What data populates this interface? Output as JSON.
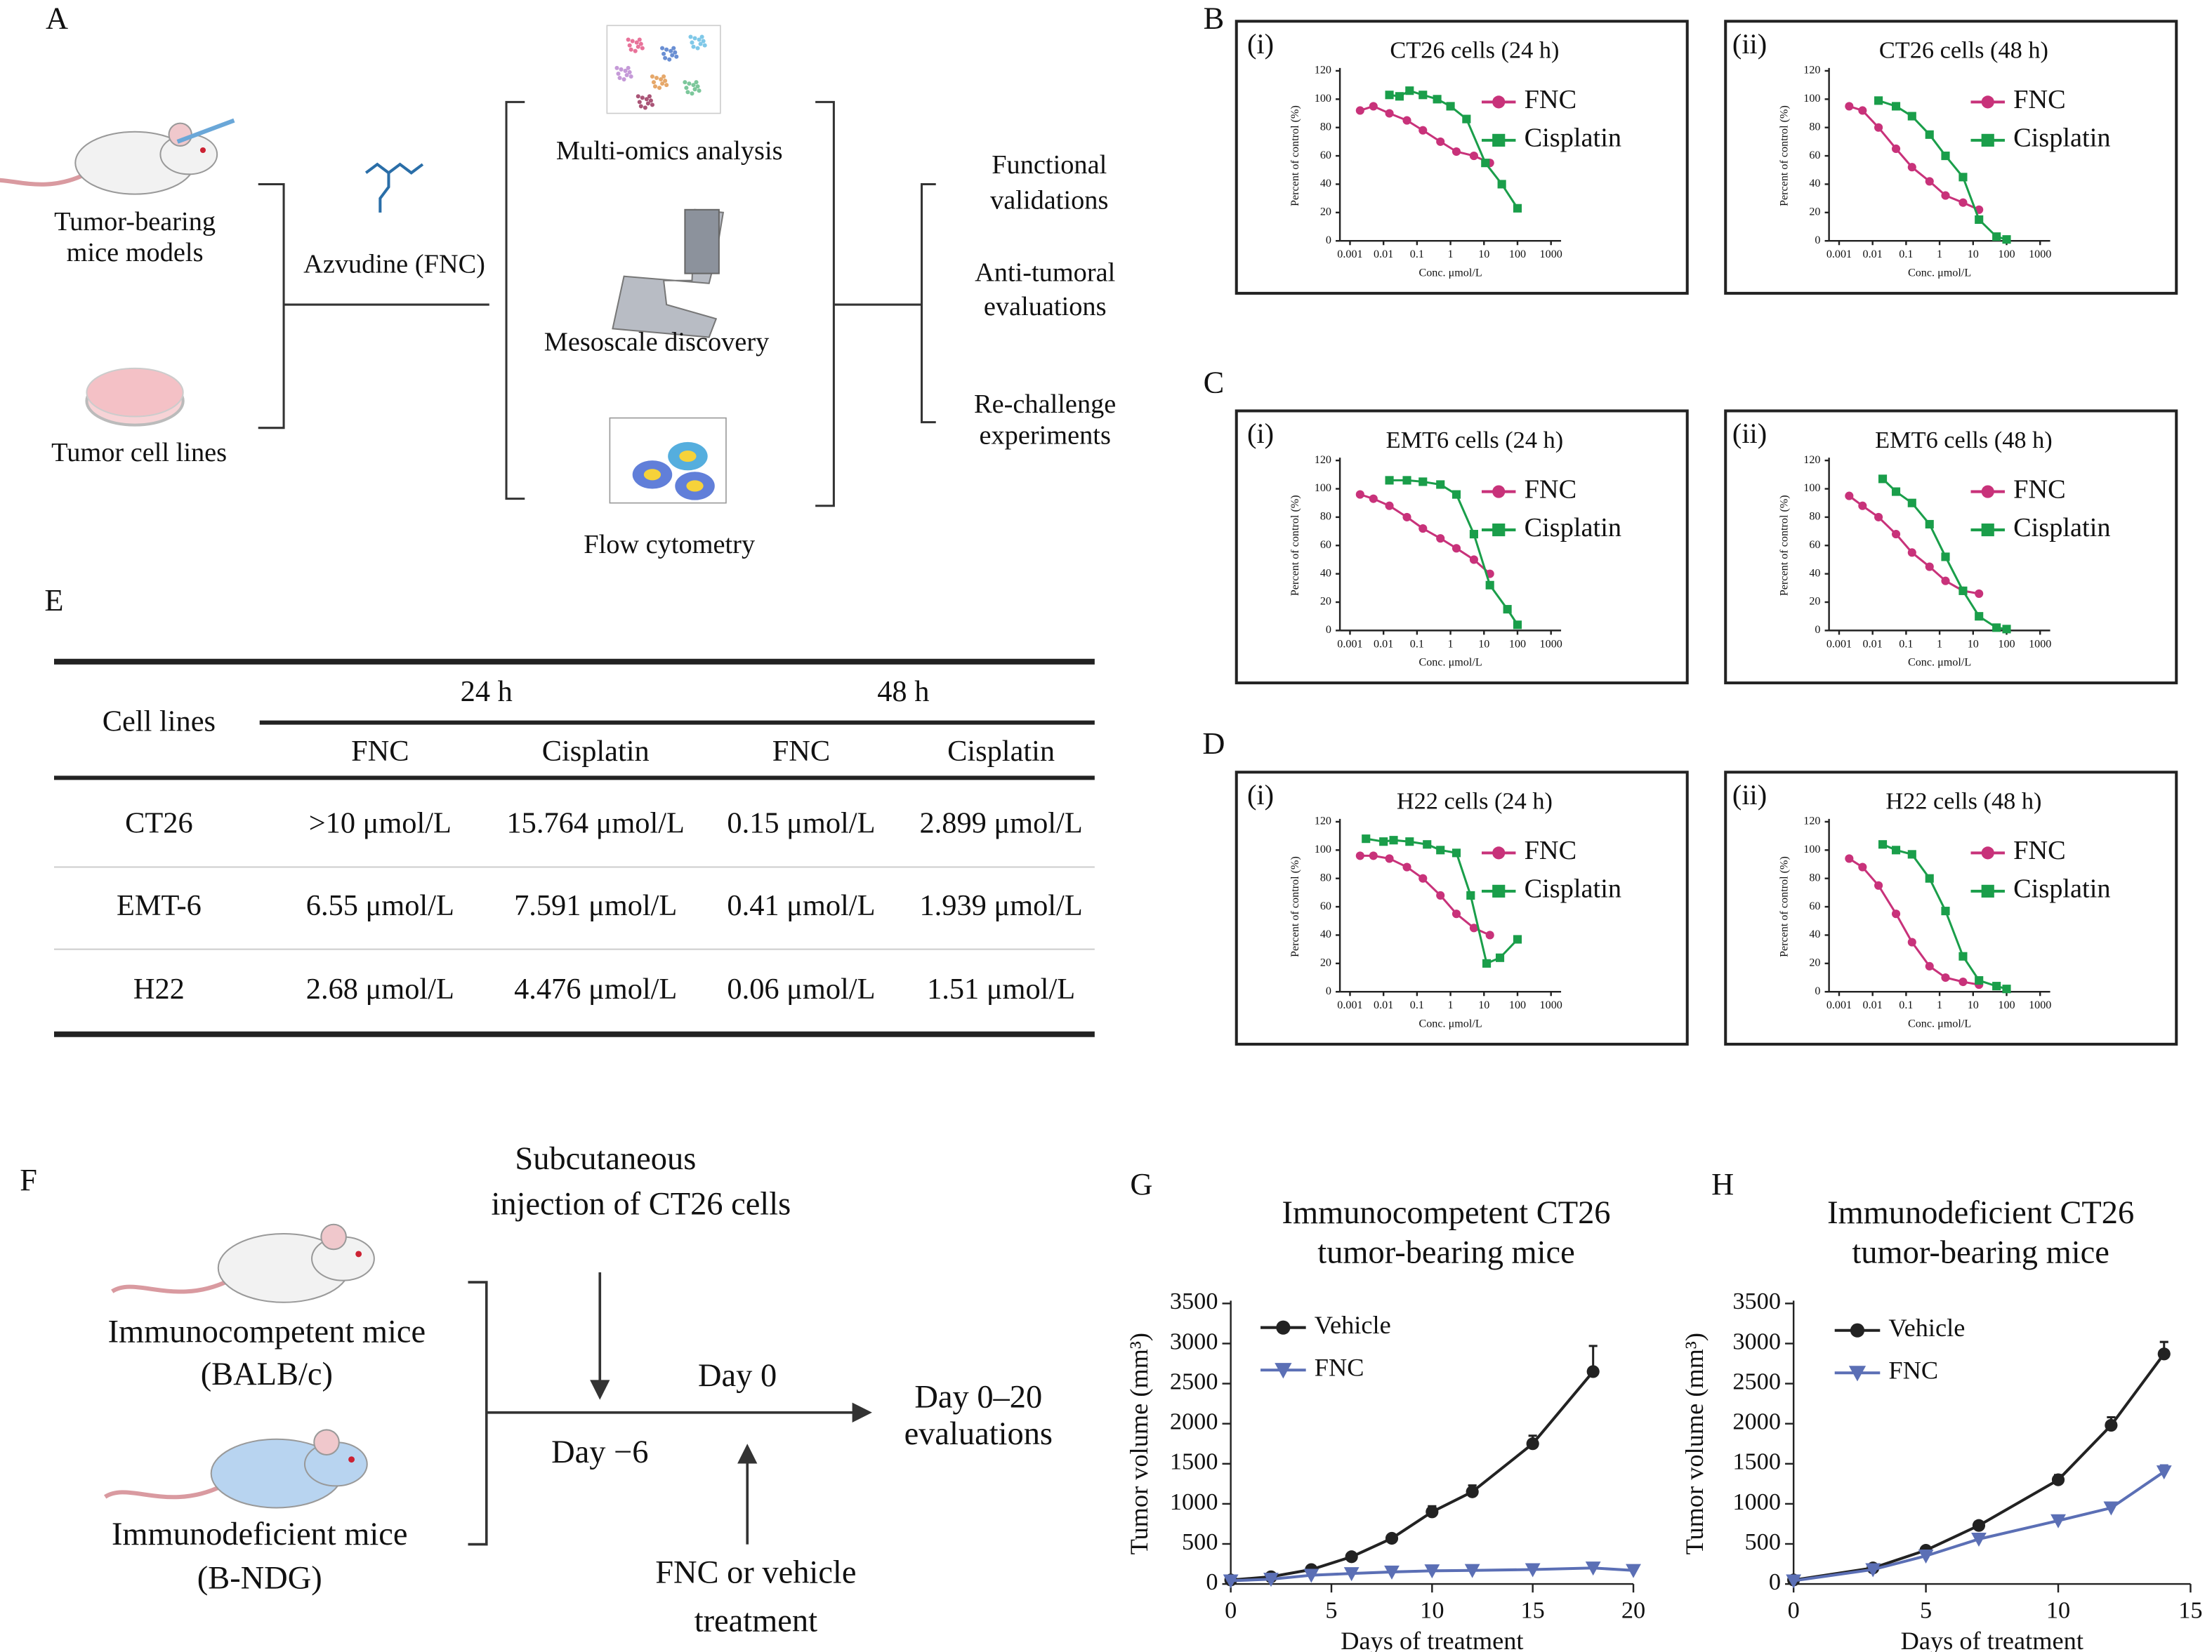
{
  "panel_labels": [
    "A",
    "B",
    "C",
    "D",
    "E",
    "F",
    "G",
    "H"
  ],
  "overview": {
    "models": [
      "Tumor-bearing",
      "mice models"
    ],
    "cell_lines": "Tumor cell lines",
    "drug": "Azvudine (FNC)",
    "methods": [
      "Multi-omics analysis",
      "Mesoscale discovery",
      "Flow cytometry"
    ],
    "outcomes": [
      [
        "Functional",
        "validations"
      ],
      [
        "Anti-tumoral",
        "evaluations"
      ],
      [
        "Re-challenge",
        "experiments"
      ]
    ]
  },
  "table": {
    "row_header": "Cell lines",
    "groups": [
      "24 h",
      "48 h"
    ],
    "columns": [
      "FNC",
      "Cisplatin",
      "FNC",
      "Cisplatin"
    ],
    "rows": [
      [
        "CT26",
        ">10 μmol/L",
        "15.764 μmol/L",
        "0.15 μmol/L",
        "2.899 μmol/L"
      ],
      [
        "EMT-6",
        "6.55 μmol/L",
        "7.591 μmol/L",
        "0.41 μmol/L",
        "1.939 μmol/L"
      ],
      [
        "H22",
        "2.68 μmol/L",
        "4.476 μmol/L",
        "0.06 μmol/L",
        "1.51 μmol/L"
      ]
    ]
  },
  "design": {
    "injection": [
      "Subcutaneous",
      "injection of CT26 cells"
    ],
    "groups": [
      [
        "Immunocompetent mice",
        "(BALB/c)"
      ],
      [
        "Immunodeficient mice",
        "(B-NDG)"
      ]
    ],
    "day_start": "Day 0",
    "day_pre": "Day −6",
    "evaluation": [
      "Day 0–20",
      "evaluations"
    ],
    "treatment": [
      "FNC or vehicle",
      "treatment"
    ]
  },
  "chart_data": [
    {
      "type": "line",
      "panel": "(i)",
      "title": "CT26 cells (24 h)",
      "xlabel": "Conc. μmol/L",
      "ylabel": "Percent of control (%)",
      "xscale": "log",
      "xlim": [
        0.0005,
        2000
      ],
      "xticks": [
        0.001,
        0.01,
        0.1,
        1,
        10,
        100,
        1000
      ],
      "ylim": [
        0,
        120
      ],
      "yticks": [
        0,
        20,
        40,
        60,
        80,
        100,
        120
      ],
      "series": [
        {
          "name": "FNC",
          "color": "#c8327a",
          "marker": "circle",
          "x": [
            0.002,
            0.005,
            0.015,
            0.05,
            0.15,
            0.5,
            1.5,
            5,
            15
          ],
          "values": [
            92,
            95,
            90,
            85,
            78,
            70,
            63,
            60,
            55
          ]
        },
        {
          "name": "Cisplatin",
          "color": "#1a9e4a",
          "marker": "square",
          "x": [
            0.015,
            0.03,
            0.06,
            0.15,
            0.4,
            1,
            3,
            11,
            34,
            100
          ],
          "values": [
            103,
            102,
            106,
            103,
            100,
            95,
            86,
            55,
            40,
            23
          ]
        }
      ]
    },
    {
      "type": "line",
      "panel": "(ii)",
      "title": "CT26 cells (48 h)",
      "xlabel": "Conc. μmol/L",
      "ylabel": "Percent of control (%)",
      "xscale": "log",
      "xlim": [
        0.0005,
        2000
      ],
      "xticks": [
        0.001,
        0.01,
        0.1,
        1,
        10,
        100,
        1000
      ],
      "ylim": [
        0,
        120
      ],
      "yticks": [
        0,
        20,
        40,
        60,
        80,
        100,
        120
      ],
      "series": [
        {
          "name": "FNC",
          "color": "#c8327a",
          "marker": "circle",
          "x": [
            0.002,
            0.005,
            0.015,
            0.05,
            0.15,
            0.5,
            1.5,
            5,
            15
          ],
          "values": [
            95,
            92,
            80,
            65,
            52,
            42,
            32,
            27,
            22
          ]
        },
        {
          "name": "Cisplatin",
          "color": "#1a9e4a",
          "marker": "square",
          "x": [
            0.015,
            0.05,
            0.15,
            0.5,
            1.5,
            5,
            15,
            50,
            100
          ],
          "values": [
            99,
            95,
            88,
            75,
            60,
            45,
            15,
            3,
            1
          ]
        }
      ]
    },
    {
      "type": "line",
      "panel": "(i)",
      "title": "EMT6 cells (24 h)",
      "xlabel": "Conc. μmol/L",
      "ylabel": "Percent of control (%)",
      "xscale": "log",
      "xlim": [
        0.0005,
        2000
      ],
      "xticks": [
        0.001,
        0.01,
        0.1,
        1,
        10,
        100,
        1000
      ],
      "ylim": [
        0,
        120
      ],
      "yticks": [
        0,
        20,
        40,
        60,
        80,
        100,
        120
      ],
      "series": [
        {
          "name": "FNC",
          "color": "#c8327a",
          "marker": "circle",
          "x": [
            0.002,
            0.005,
            0.015,
            0.05,
            0.15,
            0.5,
            1.5,
            5,
            15
          ],
          "values": [
            96,
            93,
            88,
            80,
            72,
            65,
            58,
            50,
            40
          ]
        },
        {
          "name": "Cisplatin",
          "color": "#1a9e4a",
          "marker": "square",
          "x": [
            0.015,
            0.05,
            0.15,
            0.5,
            1.5,
            5,
            15,
            50,
            100
          ],
          "values": [
            106,
            106,
            105,
            103,
            96,
            68,
            32,
            15,
            4
          ]
        }
      ]
    },
    {
      "type": "line",
      "panel": "(ii)",
      "title": "EMT6 cells (48 h)",
      "xlabel": "Conc. μmol/L",
      "ylabel": "Percent of control (%)",
      "xscale": "log",
      "xlim": [
        0.0005,
        2000
      ],
      "xticks": [
        0.001,
        0.01,
        0.1,
        1,
        10,
        100,
        1000
      ],
      "ylim": [
        0,
        120
      ],
      "yticks": [
        0,
        20,
        40,
        60,
        80,
        100,
        120
      ],
      "series": [
        {
          "name": "FNC",
          "color": "#c8327a",
          "marker": "circle",
          "x": [
            0.002,
            0.005,
            0.015,
            0.05,
            0.15,
            0.5,
            1.5,
            5,
            15
          ],
          "values": [
            95,
            88,
            80,
            68,
            55,
            45,
            35,
            28,
            26
          ]
        },
        {
          "name": "Cisplatin",
          "color": "#1a9e4a",
          "marker": "square",
          "x": [
            0.02,
            0.05,
            0.15,
            0.5,
            1.5,
            5,
            15,
            50,
            100
          ],
          "values": [
            107,
            98,
            90,
            75,
            52,
            28,
            10,
            2,
            1
          ]
        }
      ]
    },
    {
      "type": "line",
      "panel": "(i)",
      "title": "H22 cells (24 h)",
      "xlabel": "Conc. μmol/L",
      "ylabel": "Percent of control (%)",
      "xscale": "log",
      "xlim": [
        0.0005,
        2000
      ],
      "xticks": [
        0.001,
        0.01,
        0.1,
        1,
        10,
        100,
        1000
      ],
      "ylim": [
        0,
        120
      ],
      "yticks": [
        0,
        20,
        40,
        60,
        80,
        100,
        120
      ],
      "series": [
        {
          "name": "FNC",
          "color": "#c8327a",
          "marker": "circle",
          "x": [
            0.002,
            0.005,
            0.015,
            0.05,
            0.15,
            0.5,
            1.5,
            5,
            15
          ],
          "values": [
            96,
            96,
            94,
            88,
            80,
            68,
            55,
            45,
            40
          ]
        },
        {
          "name": "Cisplatin",
          "color": "#1a9e4a",
          "marker": "square",
          "x": [
            0.003,
            0.01,
            0.02,
            0.06,
            0.2,
            0.5,
            1.5,
            4,
            12,
            30,
            100
          ],
          "values": [
            108,
            106,
            107,
            106,
            104,
            100,
            98,
            68,
            20,
            24,
            37
          ]
        }
      ]
    },
    {
      "type": "line",
      "panel": "(ii)",
      "title": "H22 cells (48 h)",
      "xlabel": "Conc. μmol/L",
      "ylabel": "Percent of control (%)",
      "xscale": "log",
      "xlim": [
        0.0005,
        2000
      ],
      "xticks": [
        0.001,
        0.01,
        0.1,
        1,
        10,
        100,
        1000
      ],
      "ylim": [
        0,
        120
      ],
      "yticks": [
        0,
        20,
        40,
        60,
        80,
        100,
        120
      ],
      "series": [
        {
          "name": "FNC",
          "color": "#c8327a",
          "marker": "circle",
          "x": [
            0.002,
            0.005,
            0.015,
            0.05,
            0.15,
            0.5,
            1.5,
            5,
            15
          ],
          "values": [
            94,
            88,
            75,
            55,
            35,
            18,
            10,
            7,
            5
          ]
        },
        {
          "name": "Cisplatin",
          "color": "#1a9e4a",
          "marker": "square",
          "x": [
            0.02,
            0.05,
            0.15,
            0.5,
            1.5,
            5,
            15,
            50,
            100
          ],
          "values": [
            104,
            100,
            97,
            80,
            57,
            25,
            8,
            4,
            2
          ]
        }
      ]
    },
    {
      "type": "line",
      "title": [
        "Immunocompetent CT26",
        "tumor-bearing mice"
      ],
      "xlabel": "Days of treatment",
      "ylabel": "Tumor volume (mm³)",
      "xlim": [
        0,
        20
      ],
      "xticks": [
        0,
        5,
        10,
        15,
        20
      ],
      "ylim": [
        0,
        3500
      ],
      "yticks": [
        0,
        500,
        1000,
        1500,
        2000,
        2500,
        3000,
        3500
      ],
      "series": [
        {
          "name": "Vehicle",
          "color": "#222222",
          "marker": "circle",
          "x": [
            0,
            2,
            4,
            6,
            8,
            10,
            12,
            15,
            18
          ],
          "values": [
            50,
            90,
            180,
            340,
            570,
            900,
            1150,
            1750,
            2650
          ],
          "errors": [
            10,
            15,
            25,
            30,
            30,
            70,
            80,
            100,
            320
          ]
        },
        {
          "name": "FNC",
          "color": "#5b6fb5",
          "marker": "triangle",
          "x": [
            0,
            2,
            4,
            6,
            8,
            10,
            12,
            15,
            18,
            20
          ],
          "values": [
            40,
            60,
            110,
            130,
            150,
            165,
            170,
            180,
            200,
            170
          ],
          "errors": [
            5,
            10,
            15,
            15,
            20,
            20,
            20,
            25,
            30,
            20
          ]
        }
      ]
    },
    {
      "type": "line",
      "title": [
        "Immunodeficient CT26",
        "tumor-bearing mice"
      ],
      "xlabel": "Days of treatment",
      "ylabel": "Tumor volume (mm³)",
      "xlim": [
        0,
        15
      ],
      "xticks": [
        0,
        5,
        10,
        15
      ],
      "ylim": [
        0,
        3500
      ],
      "yticks": [
        0,
        500,
        1000,
        1500,
        2000,
        2500,
        3000,
        3500
      ],
      "series": [
        {
          "name": "Vehicle",
          "color": "#222222",
          "marker": "circle",
          "x": [
            0,
            3,
            5,
            7,
            10,
            12,
            14
          ],
          "values": [
            50,
            200,
            420,
            730,
            1300,
            1980,
            2870
          ],
          "errors": [
            10,
            20,
            30,
            30,
            60,
            100,
            150
          ]
        },
        {
          "name": "FNC",
          "color": "#5b6fb5",
          "marker": "triangle",
          "x": [
            0,
            3,
            5,
            7,
            10,
            12,
            14
          ],
          "values": [
            40,
            180,
            350,
            560,
            790,
            950,
            1400
          ],
          "errors": [
            10,
            20,
            30,
            30,
            50,
            60,
            80
          ]
        }
      ]
    }
  ]
}
